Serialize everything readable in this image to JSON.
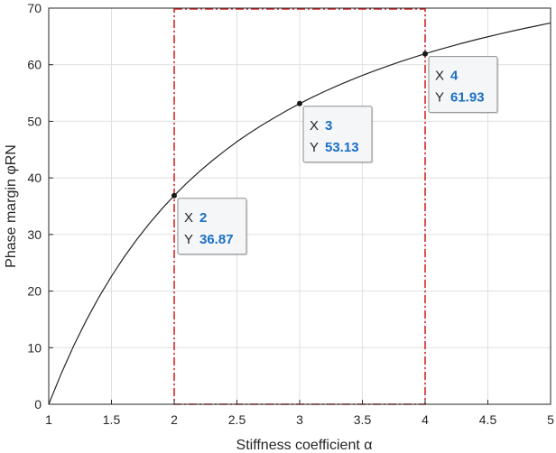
{
  "chart_data": {
    "type": "line",
    "title": "",
    "xlabel": "Stiffness coefficient  α",
    "ylabel": "Phase margin  φRN",
    "xlim": [
      1,
      5
    ],
    "ylim": [
      0,
      70
    ],
    "grid": true,
    "x_ticks": [
      "1",
      "1.5",
      "2",
      "2.5",
      "3",
      "3.5",
      "4",
      "4.5",
      "5"
    ],
    "y_ticks": [
      "0",
      "10",
      "20",
      "30",
      "40",
      "50",
      "60",
      "70"
    ],
    "series": [
      {
        "x": [
          1,
          1.1,
          1.2,
          1.3,
          1.4,
          1.5,
          1.6,
          1.7,
          1.8,
          1.9,
          2.0,
          2.1,
          2.2,
          2.3,
          2.4,
          2.5,
          2.6,
          2.7,
          2.8,
          2.9,
          3.0,
          3.1,
          3.2,
          3.3,
          3.4,
          3.5,
          3.6,
          3.7,
          3.8,
          3.9,
          4.0,
          4.1,
          4.2,
          4.3,
          4.4,
          4.5,
          4.6,
          4.7,
          4.8,
          4.9,
          5.0
        ],
        "y": [
          0,
          5.45,
          10.39,
          14.86,
          18.92,
          22.62,
          25.99,
          29.06,
          31.89,
          34.49,
          36.87,
          39.08,
          41.11,
          42.99,
          44.74,
          46.4,
          47.92,
          49.33,
          50.65,
          51.92,
          53.13,
          54.24,
          55.29,
          56.28,
          57.22,
          58.11,
          58.95,
          59.75,
          60.52,
          61.24,
          61.93,
          62.59,
          63.22,
          63.82,
          64.4,
          64.94,
          65.47,
          65.97,
          66.45,
          66.91,
          67.38
        ],
        "color": "#262626"
      }
    ],
    "markers": [
      {
        "x": 2,
        "y": 36.87
      },
      {
        "x": 3,
        "y": 53.13
      },
      {
        "x": 4,
        "y": 61.93
      }
    ],
    "datatips": [
      {
        "x_key": "X",
        "x_val": "2",
        "y_key": "Y",
        "y_val": "36.87"
      },
      {
        "x_key": "X",
        "x_val": "3",
        "y_key": "Y",
        "y_val": "53.13"
      },
      {
        "x_key": "X",
        "x_val": "4",
        "y_key": "Y",
        "y_val": "61.93"
      }
    ],
    "highlight_region": {
      "x": [
        2,
        4
      ],
      "y": [
        0,
        70
      ],
      "color": "#d62728",
      "style": "dash-dot"
    }
  }
}
